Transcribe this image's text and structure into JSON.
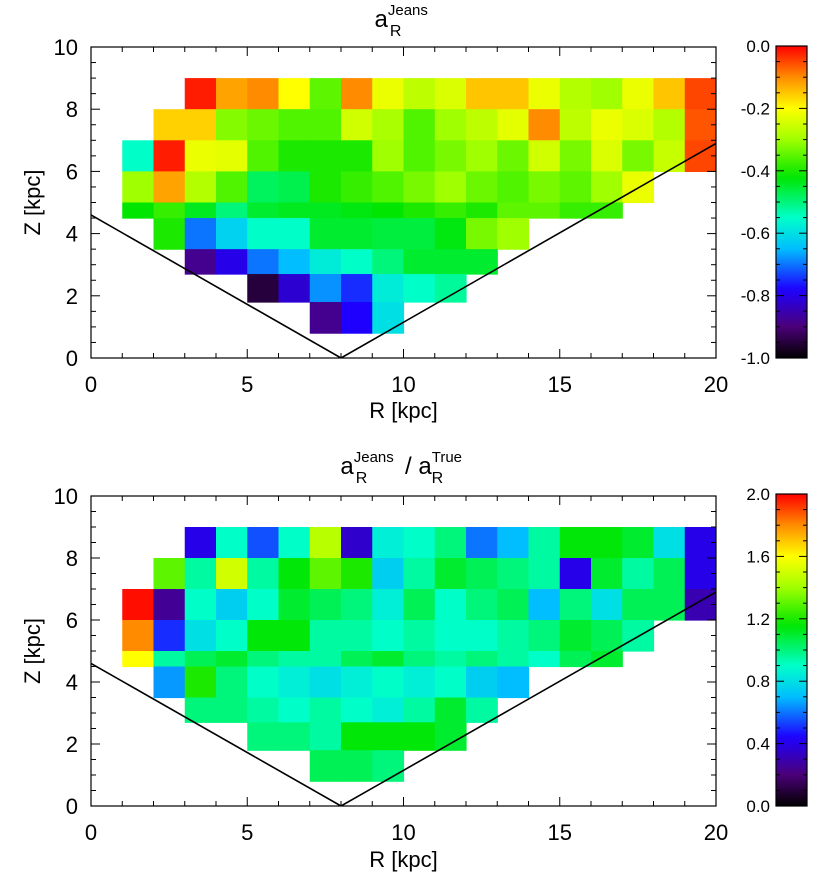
{
  "chart_data": [
    {
      "type": "heatmap",
      "title": {
        "base": "a",
        "sub": "R",
        "sup": "Jeans"
      },
      "xlabel": "R  [kpc]",
      "ylabel": "Z  [kpc]",
      "xlim": [
        0,
        20
      ],
      "ylim": [
        0,
        10
      ],
      "x_ticks": [
        0,
        5,
        10,
        15,
        20
      ],
      "y_ticks": [
        0,
        2,
        4,
        6,
        8,
        10
      ],
      "colorbar": {
        "range": [
          -1.0,
          0.0
        ],
        "ticks": [
          "0.0",
          "-0.2",
          "-0.4",
          "-0.6",
          "-0.8",
          "-1.0"
        ],
        "tick_values": [
          0.0,
          -0.2,
          -0.4,
          -0.6,
          -0.8,
          -1.0
        ]
      },
      "boundary_lines": [
        {
          "x": [
            0,
            8
          ],
          "y": [
            4.6,
            0
          ]
        },
        {
          "x": [
            8,
            20
          ],
          "y": [
            0,
            6.9
          ]
        }
      ],
      "cell_size": {
        "dR": 1.0,
        "dZ": 1.0
      },
      "cells": [
        {
          "R": [
            3,
            19
          ],
          "Z": [
            8,
            9
          ],
          "values": [
            -0.02,
            -0.12,
            -0.1,
            -0.2,
            -0.35,
            -0.1,
            -0.22,
            -0.27,
            -0.24,
            -0.15,
            -0.15,
            -0.22,
            -0.28,
            -0.3,
            -0.22,
            -0.15,
            -0.05
          ]
        },
        {
          "R": [
            2,
            19
          ],
          "Z": [
            7,
            8
          ],
          "values": [
            -0.16,
            -0.16,
            -0.32,
            -0.34,
            -0.36,
            -0.36,
            -0.25,
            -0.29,
            -0.36,
            -0.3,
            -0.27,
            -0.23,
            -0.1,
            -0.27,
            -0.22,
            -0.24,
            -0.28,
            -0.06
          ]
        },
        {
          "R": [
            1,
            19
          ],
          "Z": [
            6,
            7
          ],
          "values": [
            -0.55,
            -0.02,
            -0.22,
            -0.23,
            -0.36,
            -0.4,
            -0.4,
            -0.4,
            -0.3,
            -0.36,
            -0.33,
            -0.3,
            -0.34,
            -0.25,
            -0.33,
            -0.24,
            -0.33,
            -0.26,
            -0.05
          ]
        },
        {
          "R": [
            1,
            18
          ],
          "Z": [
            5,
            6
          ],
          "values": [
            -0.3,
            -0.12,
            -0.28,
            -0.36,
            -0.48,
            -0.47,
            -0.4,
            -0.38,
            -0.36,
            -0.33,
            -0.3,
            -0.34,
            -0.36,
            -0.33,
            -0.35,
            -0.3,
            -0.22
          ]
        },
        {
          "R": [
            1,
            17
          ],
          "Z": [
            4.5,
            5
          ],
          "values": [
            -0.42,
            -0.38,
            -0.44,
            -0.5,
            -0.45,
            -0.44,
            -0.44,
            -0.43,
            -0.42,
            -0.4,
            -0.38,
            -0.4,
            -0.35,
            -0.35,
            -0.38,
            -0.38
          ]
        },
        {
          "R": [
            2,
            14
          ],
          "Z": [
            3.5,
            4.5
          ],
          "values": [
            -0.4,
            -0.7,
            -0.62,
            -0.55,
            -0.55,
            -0.45,
            -0.45,
            -0.46,
            -0.46,
            -0.43,
            -0.33,
            -0.3
          ]
        },
        {
          "R": [
            3,
            13
          ],
          "Z": [
            2.7,
            3.5
          ],
          "values": [
            -0.88,
            -0.8,
            -0.7,
            -0.65,
            -0.58,
            -0.55,
            -0.5,
            -0.45,
            -0.45,
            -0.45
          ]
        },
        {
          "R": [
            5,
            12
          ],
          "Z": [
            1.8,
            2.7
          ],
          "values": [
            -0.95,
            -0.82,
            -0.68,
            -0.75,
            -0.58,
            -0.55,
            -0.52
          ]
        },
        {
          "R": [
            7,
            10
          ],
          "Z": [
            0.8,
            1.8
          ],
          "values": [
            -0.88,
            -0.78,
            -0.6
          ]
        }
      ]
    },
    {
      "type": "heatmap",
      "title": {
        "base": "a",
        "sub": "R",
        "sup": "Jeans",
        "separator": "/",
        "base2": "a",
        "sub2": "R",
        "sup2": "True"
      },
      "xlabel": "R  [kpc]",
      "ylabel": "Z  [kpc]",
      "xlim": [
        0,
        20
      ],
      "ylim": [
        0,
        10
      ],
      "x_ticks": [
        0,
        5,
        10,
        15,
        20
      ],
      "y_ticks": [
        0,
        2,
        4,
        6,
        8,
        10
      ],
      "colorbar": {
        "range": [
          0.0,
          2.0
        ],
        "ticks": [
          "2.0",
          "1.6",
          "1.2",
          "0.8",
          "0.4",
          "0.0"
        ],
        "tick_values": [
          2.0,
          1.6,
          1.2,
          0.8,
          0.4,
          0.0
        ]
      },
      "boundary_lines": [
        {
          "x": [
            0,
            8
          ],
          "y": [
            4.6,
            0
          ]
        },
        {
          "x": [
            8,
            20
          ],
          "y": [
            0,
            6.9
          ]
        }
      ],
      "cell_size": {
        "dR": 1.0,
        "dZ": 1.0
      },
      "cells": [
        {
          "R": [
            3,
            19
          ],
          "Z": [
            8,
            9
          ],
          "values": [
            0.4,
            0.9,
            0.55,
            0.9,
            1.45,
            0.35,
            0.85,
            0.9,
            1.0,
            0.6,
            0.7,
            0.95,
            1.15,
            1.15,
            1.1,
            0.8,
            0.4
          ]
        },
        {
          "R": [
            2,
            19
          ],
          "Z": [
            7,
            8
          ],
          "values": [
            1.3,
            0.95,
            1.5,
            0.95,
            1.15,
            1.3,
            1.2,
            0.75,
            0.95,
            1.1,
            1.05,
            1.0,
            0.95,
            0.4,
            1.1,
            0.95,
            1.05,
            0.4
          ]
        },
        {
          "R": [
            1,
            19
          ],
          "Z": [
            6,
            7
          ],
          "values": [
            1.98,
            0.25,
            0.9,
            0.75,
            0.9,
            1.1,
            1.05,
            1.0,
            0.85,
            1.05,
            0.9,
            1.0,
            1.05,
            0.7,
            1.0,
            0.8,
            1.05,
            1.05,
            0.3
          ]
        },
        {
          "R": [
            1,
            18
          ],
          "Z": [
            5,
            6
          ],
          "values": [
            1.8,
            0.5,
            0.8,
            0.9,
            1.15,
            1.15,
            0.95,
            0.95,
            0.9,
            0.95,
            0.9,
            0.9,
            0.95,
            1.0,
            1.1,
            1.05,
            0.95
          ]
        },
        {
          "R": [
            1,
            17
          ],
          "Z": [
            4.5,
            5
          ],
          "values": [
            1.6,
            0.95,
            1.05,
            1.1,
            1.0,
            0.95,
            0.95,
            1.05,
            1.1,
            1.0,
            0.95,
            1.0,
            0.95,
            0.9,
            1.05,
            1.1
          ]
        },
        {
          "R": [
            2,
            14
          ],
          "Z": [
            3.5,
            4.5
          ],
          "values": [
            0.65,
            1.2,
            1.0,
            0.9,
            0.85,
            0.8,
            0.85,
            0.9,
            0.85,
            0.9,
            0.75,
            0.7
          ]
        },
        {
          "R": [
            3,
            13
          ],
          "Z": [
            2.7,
            3.5
          ],
          "values": [
            1.0,
            1.0,
            0.95,
            0.9,
            0.95,
            0.9,
            0.85,
            0.95,
            1.1,
            0.95
          ]
        },
        {
          "R": [
            5,
            12
          ],
          "Z": [
            1.8,
            2.7
          ],
          "values": [
            1.0,
            1.0,
            0.95,
            1.15,
            1.15,
            1.15,
            1.1
          ]
        },
        {
          "R": [
            7,
            10
          ],
          "Z": [
            0.8,
            1.8
          ],
          "values": [
            1.05,
            1.05,
            1.0
          ]
        }
      ]
    }
  ]
}
